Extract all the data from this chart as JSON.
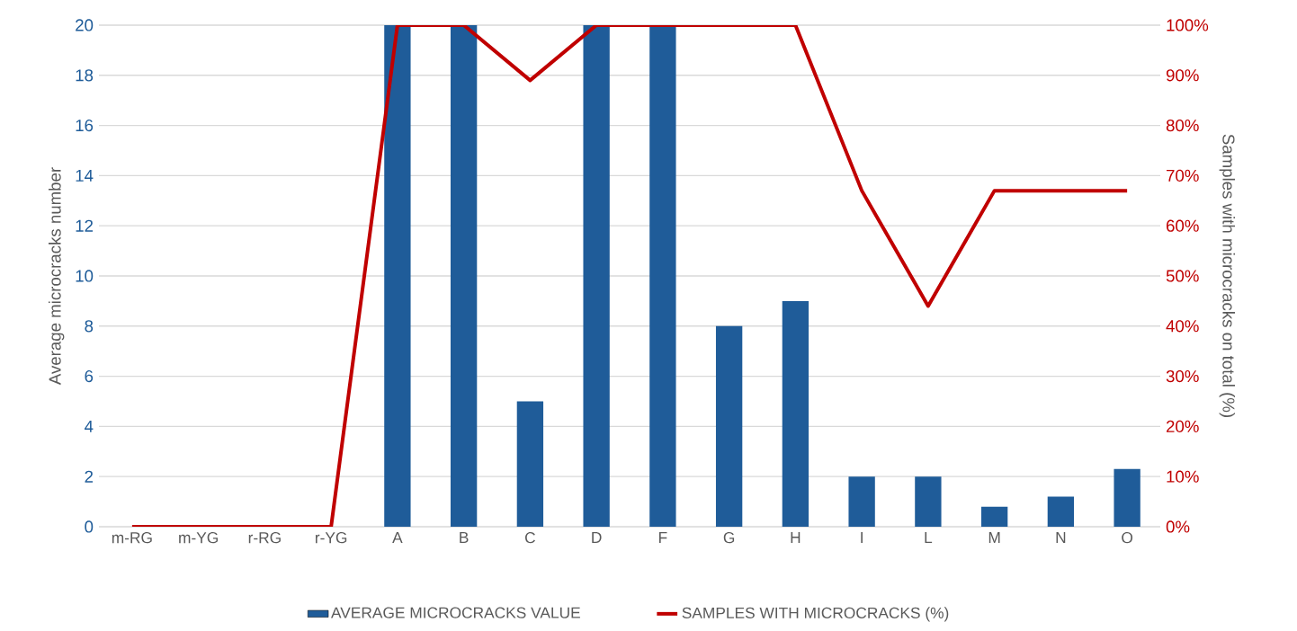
{
  "chart_data": {
    "type": "bar",
    "categories": [
      "m-RG",
      "m-YG",
      "r-RG",
      "r-YG",
      "A",
      "B",
      "C",
      "D",
      "F",
      "G",
      "H",
      "I",
      "L",
      "M",
      "N",
      "O"
    ],
    "series": [
      {
        "name": "AVERAGE MICROCRACKS VALUE",
        "color": "#1f5c99",
        "values": [
          0,
          0,
          0,
          0,
          20,
          20,
          5,
          20,
          20,
          8,
          9,
          2,
          2,
          0.8,
          1.2,
          2.3
        ]
      },
      {
        "name": "SAMPLES WITH MICROCRACKS (%)",
        "type": "line",
        "axis": "y2",
        "color": "#c00000",
        "values": [
          0,
          0,
          0,
          0,
          100,
          100,
          89,
          100,
          100,
          100,
          100,
          67,
          44,
          67,
          67,
          67
        ]
      }
    ],
    "ylabel": "Average microcracks number",
    "y2label": "Samples with microcracks on total (%)",
    "ylim": [
      0,
      20
    ],
    "yticks": [
      0,
      2,
      4,
      6,
      8,
      10,
      12,
      14,
      16,
      18,
      20
    ],
    "y2lim": [
      0,
      100
    ],
    "y2ticks": [
      {
        "value": 0,
        "label": "0%"
      },
      {
        "value": 10,
        "label": "10%"
      },
      {
        "value": 20,
        "label": "20%"
      },
      {
        "value": 30,
        "label": "30%"
      },
      {
        "value": 40,
        "label": "40%"
      },
      {
        "value": 50,
        "label": "50%"
      },
      {
        "value": 60,
        "label": "60%"
      },
      {
        "value": 70,
        "label": "70%"
      },
      {
        "value": 80,
        "label": "80%"
      },
      {
        "value": 90,
        "label": "90%"
      },
      {
        "value": 100,
        "label": "100%"
      }
    ],
    "grid": "y",
    "legend": "bottom",
    "marker": "none",
    "line_style": "solid"
  }
}
